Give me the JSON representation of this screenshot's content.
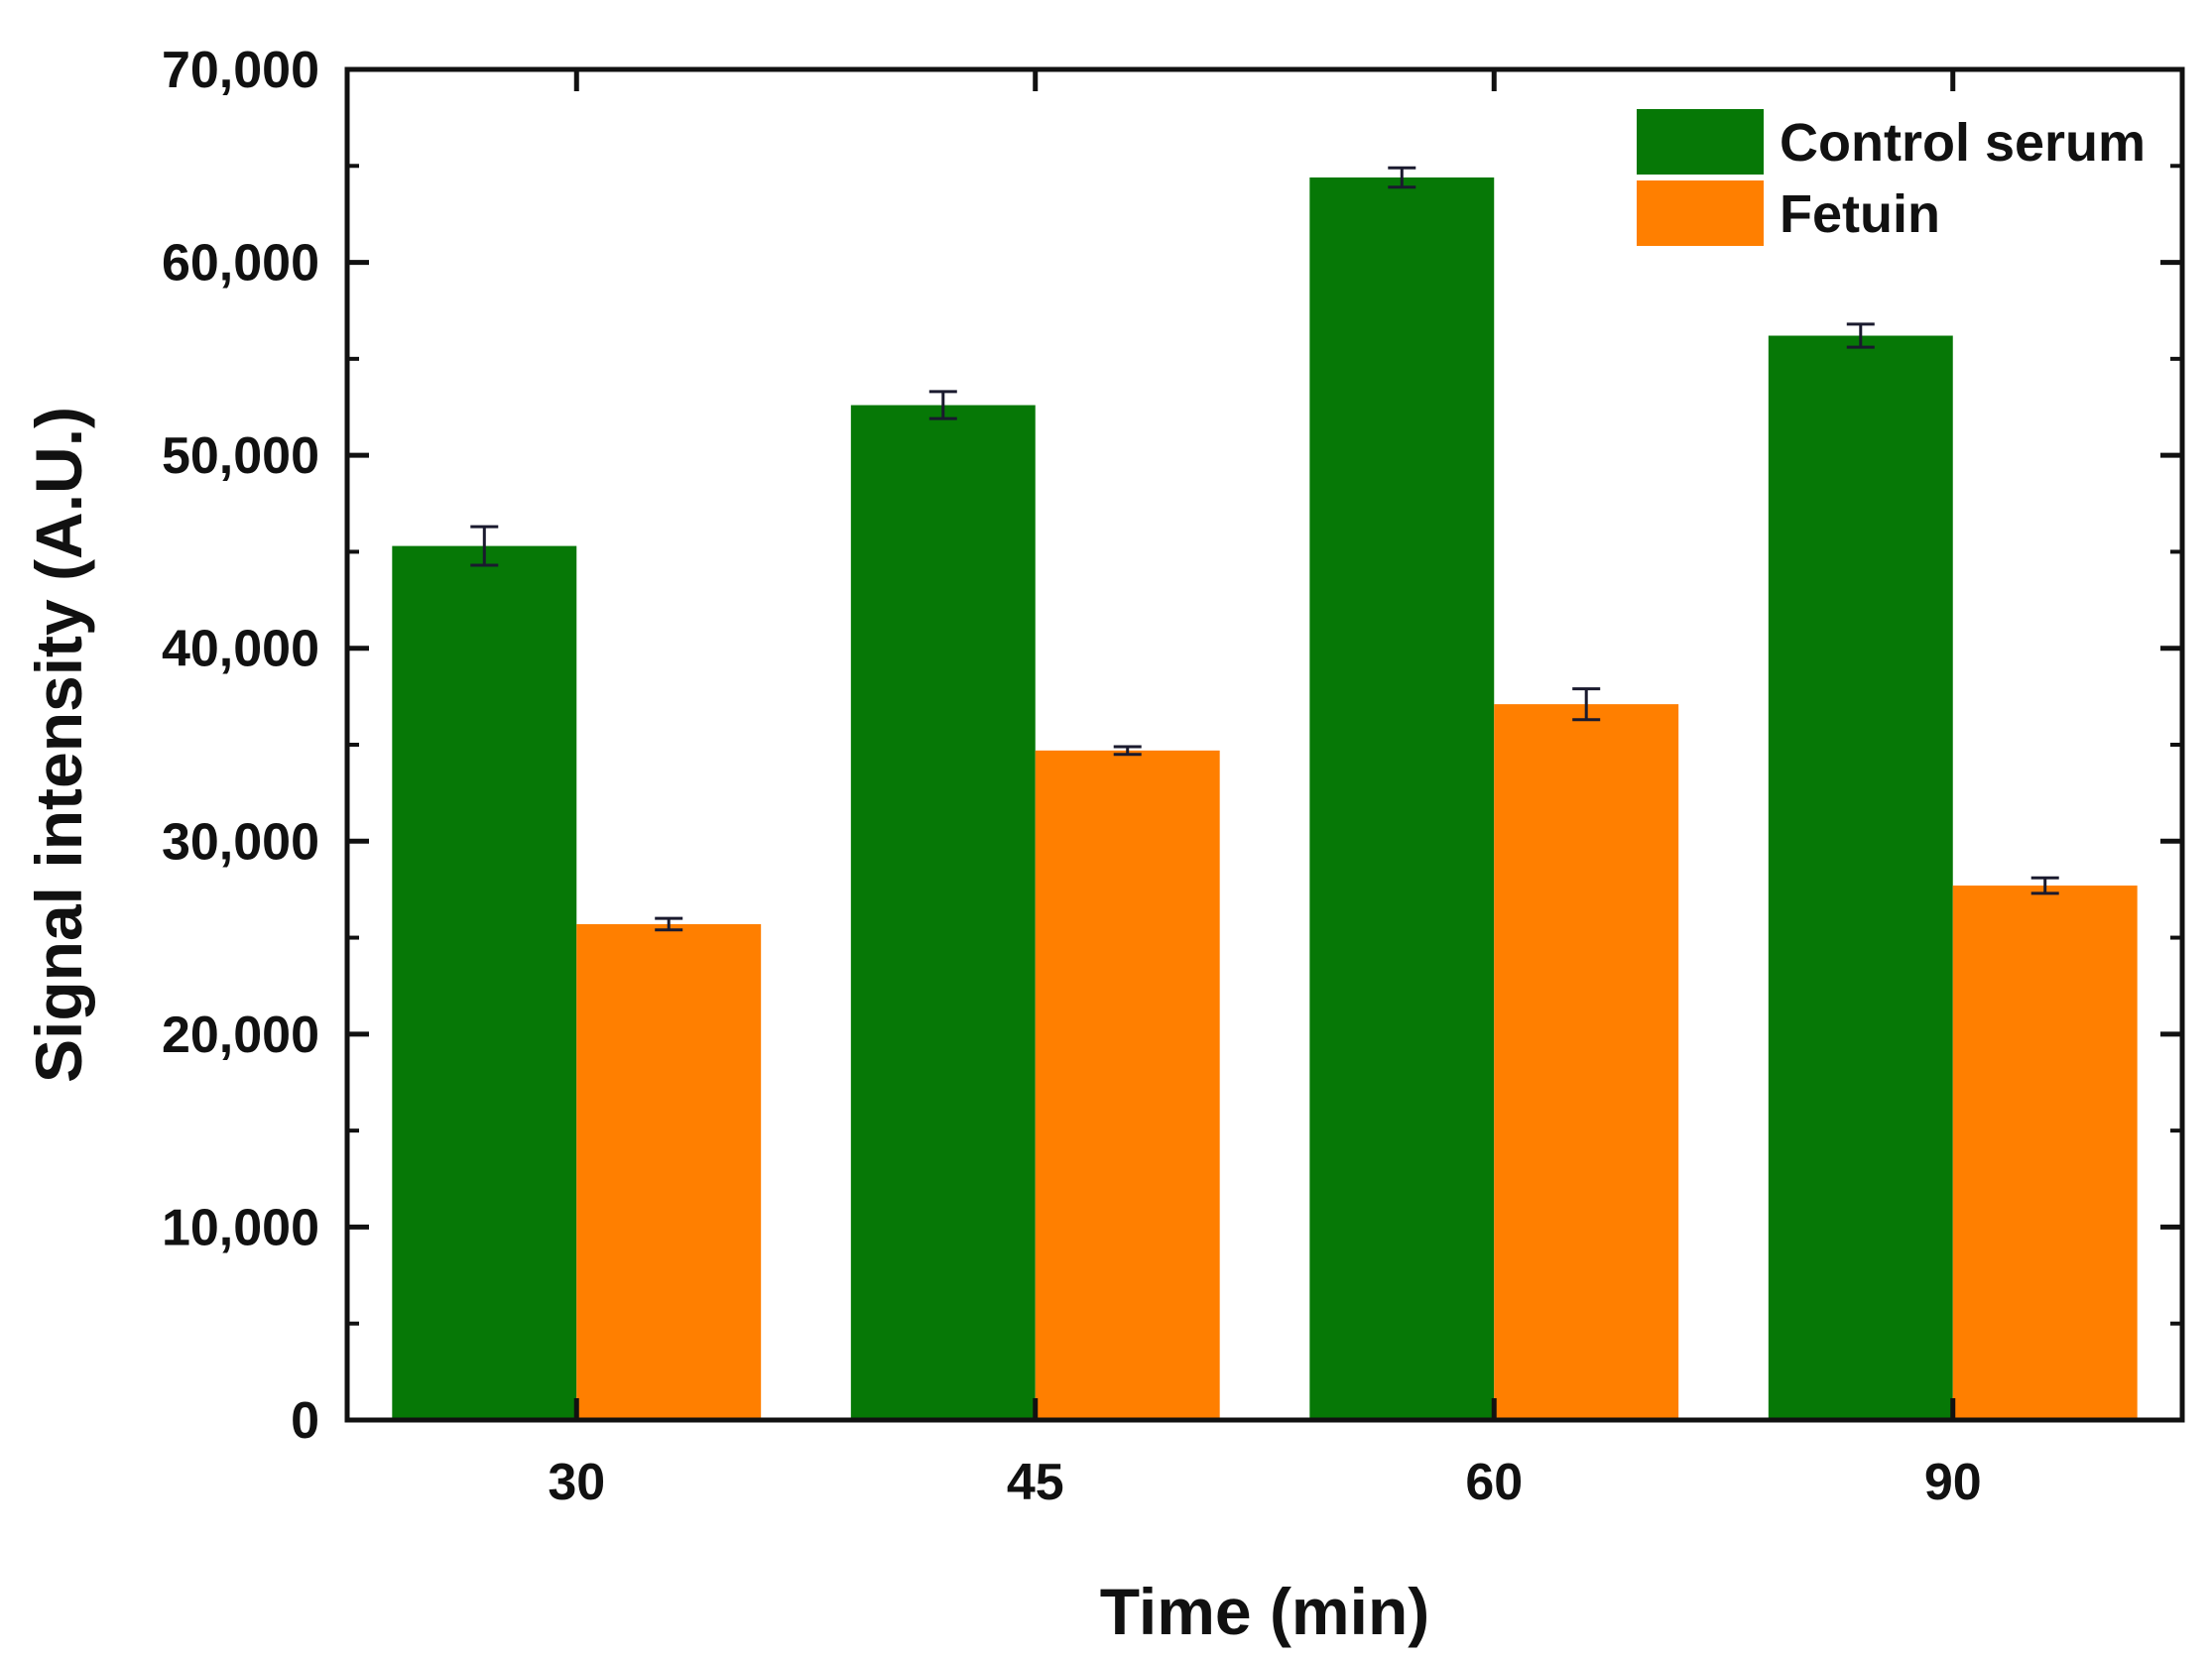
{
  "chart_data": {
    "type": "bar",
    "title": "",
    "xlabel": "Time (min)",
    "ylabel": "Signal intensity (A.U.)",
    "categories": [
      "30",
      "45",
      "60",
      "90"
    ],
    "series": [
      {
        "name": "Control serum",
        "color": "#067806",
        "values": [
          45300,
          52600,
          64400,
          56200
        ],
        "errors": [
          1000,
          700,
          500,
          600
        ]
      },
      {
        "name": "Fetuin",
        "color": "#FF7F00",
        "values": [
          25700,
          34700,
          37100,
          27700
        ],
        "errors": [
          300,
          200,
          800,
          400
        ]
      }
    ],
    "ylim": [
      0,
      70000
    ],
    "yticks": [
      "0",
      "10,000",
      "20,000",
      "30,000",
      "40,000",
      "50,000",
      "60,000",
      "70,000"
    ],
    "ytick_values": [
      0,
      10000,
      20000,
      30000,
      40000,
      50000,
      60000,
      70000
    ],
    "legend_position": "top-right",
    "grid": false
  }
}
